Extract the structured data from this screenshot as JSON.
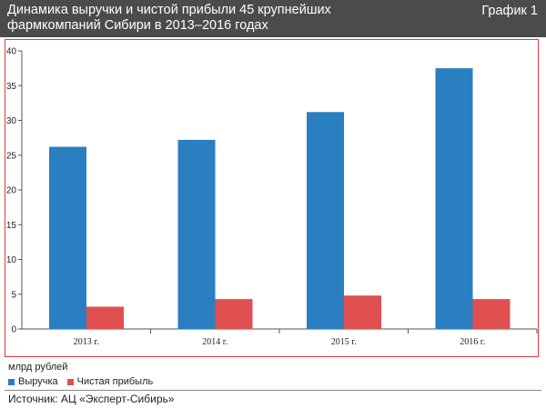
{
  "header": {
    "title": "Динамика выручки и чистой прибыли 45 крупнейших\nфармкомпаний Сибири в 2013–2016 годах",
    "figure_label": "График 1"
  },
  "unit_label": "млрд рублей",
  "source": "Источник: АЦ «Эксперт-Сибирь»",
  "colors": {
    "revenue": "#2a7fc0",
    "profit": "#e05050",
    "frame": "#e0393e",
    "header_bg": "#4b4b4b"
  },
  "chart_data": {
    "type": "bar",
    "categories": [
      "2013 г.",
      "2014 г.",
      "2015 г.",
      "2016 г."
    ],
    "series": [
      {
        "name": "Выручка",
        "values": [
          26.2,
          27.2,
          31.2,
          37.5
        ]
      },
      {
        "name": "Чистая прибыль",
        "values": [
          3.2,
          4.3,
          4.8,
          4.3
        ]
      }
    ],
    "ylim": [
      0,
      40
    ],
    "yticks": [
      0,
      5,
      10,
      15,
      20,
      25,
      30,
      35,
      40
    ],
    "grid": false,
    "legend_position": "bottom-left"
  }
}
